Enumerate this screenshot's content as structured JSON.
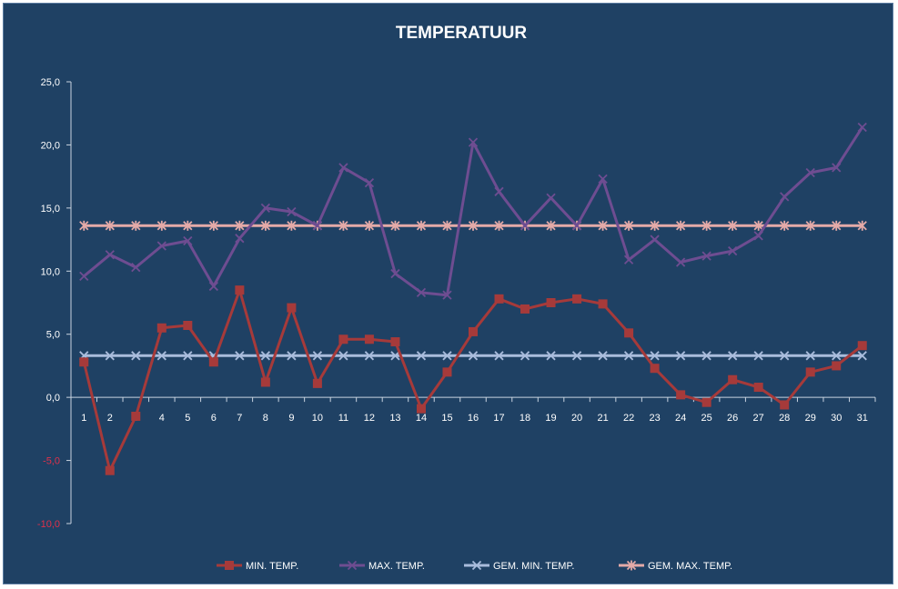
{
  "chart_data": {
    "type": "line",
    "title": "TEMPERATUUR",
    "x": [
      "1",
      "2",
      "3",
      "4",
      "5",
      "6",
      "7",
      "8",
      "9",
      "10",
      "11",
      "12",
      "13",
      "14",
      "15",
      "16",
      "17",
      "18",
      "19",
      "20",
      "21",
      "22",
      "23",
      "24",
      "25",
      "26",
      "27",
      "28",
      "29",
      "30",
      "31"
    ],
    "ylim": [
      -10,
      25
    ],
    "yticks": [
      "25,0",
      "20,0",
      "15,0",
      "10,0",
      "5,0",
      "0,0",
      "-5,0",
      "-10,0"
    ],
    "ytick_values": [
      25,
      20,
      15,
      10,
      5,
      0,
      -5,
      -10
    ],
    "grid": false,
    "legend_position": "bottom",
    "series": [
      {
        "name": "MIN. TEMP.",
        "color": "#a63a3a",
        "marker": "square",
        "values": [
          2.8,
          -5.8,
          -1.5,
          5.5,
          5.7,
          2.8,
          8.5,
          1.2,
          7.1,
          1.1,
          4.6,
          4.6,
          4.4,
          -0.9,
          2.0,
          5.2,
          7.8,
          7.0,
          7.5,
          7.8,
          7.4,
          5.1,
          2.3,
          0.2,
          -0.4,
          1.4,
          0.8,
          -0.6,
          2.0,
          2.5,
          4.1
        ]
      },
      {
        "name": "MAX. TEMP.",
        "color": "#6e4d91",
        "marker": "x",
        "values": [
          9.6,
          11.3,
          10.3,
          12.0,
          12.4,
          8.8,
          12.6,
          15.0,
          14.7,
          13.6,
          18.2,
          17.0,
          9.8,
          8.3,
          8.1,
          20.2,
          16.3,
          13.6,
          15.8,
          13.6,
          17.3,
          10.9,
          12.5,
          10.7,
          11.2,
          11.6,
          12.8,
          15.9,
          17.8,
          18.2,
          21.4
        ]
      },
      {
        "name": "GEM. MIN. TEMP.",
        "color": "#a9bcdc",
        "marker": "x",
        "values": [
          3.3,
          3.3,
          3.3,
          3.3,
          3.3,
          3.3,
          3.3,
          3.3,
          3.3,
          3.3,
          3.3,
          3.3,
          3.3,
          3.3,
          3.3,
          3.3,
          3.3,
          3.3,
          3.3,
          3.3,
          3.3,
          3.3,
          3.3,
          3.3,
          3.3,
          3.3,
          3.3,
          3.3,
          3.3,
          3.3,
          3.3
        ]
      },
      {
        "name": "GEM. MAX. TEMP.",
        "color": "#e4aaa8",
        "marker": "star",
        "values": [
          13.6,
          13.6,
          13.6,
          13.6,
          13.6,
          13.6,
          13.6,
          13.6,
          13.6,
          13.6,
          13.6,
          13.6,
          13.6,
          13.6,
          13.6,
          13.6,
          13.6,
          13.6,
          13.6,
          13.6,
          13.6,
          13.6,
          13.6,
          13.6,
          13.6,
          13.6,
          13.6,
          13.6,
          13.6,
          13.6,
          13.6
        ]
      }
    ],
    "colors": {
      "background": "#1f4164",
      "axis": "#c8d3e0",
      "negative_tick": "#e0304a"
    }
  }
}
